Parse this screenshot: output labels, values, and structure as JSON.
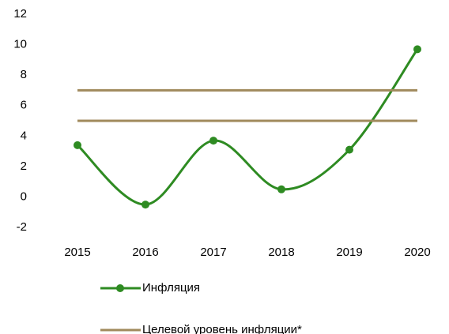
{
  "chart_data": {
    "type": "line",
    "categories": [
      "2015",
      "2016",
      "2017",
      "2018",
      "2019",
      "2020"
    ],
    "series": [
      {
        "name": "Инфляция",
        "color": "#2e8b22",
        "values": [
          3.4,
          -0.5,
          3.7,
          0.5,
          3.1,
          9.7
        ],
        "smooth": true,
        "markers": true
      },
      {
        "name": "Целевой уровень инфляции*",
        "color": "#a08a5c",
        "values": [
          7,
          7,
          7,
          7,
          7,
          7
        ]
      },
      {
        "color": "#a08a5c",
        "values": [
          5,
          5,
          5,
          5,
          5,
          5
        ]
      }
    ],
    "ylim": [
      -2,
      12
    ],
    "yticks": [
      -2,
      0,
      2,
      4,
      6,
      8,
      10,
      12
    ]
  }
}
